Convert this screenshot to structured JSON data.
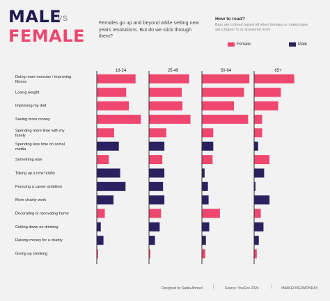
{
  "header": {
    "title_male": "MALE",
    "title_vs": "VS",
    "title_female": "FEMALE",
    "subtitle": "Females go up and beyond while setting new years resolutions. But do we stick through them?"
  },
  "how_to_read": {
    "title": "How to read?",
    "text": "Bars are colored based off when females or males have set a higher % or answered more"
  },
  "colors": {
    "female": "#ef476f",
    "male": "#2b2160",
    "divider": "#333333"
  },
  "footer": {
    "designed_by": "Designed by Sadia Ahmed",
    "source": "Source: YouGov 2024",
    "hashtag": "#MAKEOVERMONDAY"
  },
  "chart_data": {
    "type": "bar",
    "title": "",
    "legend": [
      "Female",
      "Male"
    ],
    "legend_position": "top-right",
    "groups": [
      "18-24",
      "25-49",
      "50-64",
      "65+"
    ],
    "categories": [
      "Doing more exercise / improving fitness",
      "Losing weight",
      "Improving my diet",
      "Saving more money",
      "Spending more time with my family",
      "Spending less time on social media",
      "Something else",
      "Taking up a new hobby",
      "Pursuing a career ambition",
      "More charity work",
      "Decorating or renovating home",
      "Cutting down on drinking",
      "Raising money for a charity",
      "Giving up smoking"
    ],
    "xlim": [
      0,
      76
    ],
    "values": {
      "18-24": [
        58,
        44,
        48,
        66,
        26,
        33,
        18,
        35,
        43,
        25,
        12,
        6,
        10,
        2
      ],
      "25-49": [
        60,
        49,
        50,
        62,
        26,
        23,
        20,
        23,
        21,
        23,
        18,
        16,
        9,
        2
      ],
      "50-64": [
        71,
        63,
        48,
        69,
        17,
        17,
        16,
        4,
        9,
        10,
        27,
        11,
        6,
        5
      ],
      "65+": [
        60,
        40,
        36,
        12,
        12,
        6,
        23,
        15,
        2,
        23,
        10,
        14,
        7,
        4
      ]
    },
    "color_by": {
      "18-24": [
        "F",
        "F",
        "F",
        "F",
        "F",
        "M",
        "F",
        "M",
        "M",
        "M",
        "F",
        "M",
        "M",
        "F"
      ],
      "25-49": [
        "F",
        "F",
        "F",
        "F",
        "F",
        "M",
        "F",
        "M",
        "M",
        "M",
        "F",
        "M",
        "M",
        "F"
      ],
      "50-64": [
        "F",
        "F",
        "F",
        "F",
        "F",
        "M",
        "F",
        "M",
        "M",
        "M",
        "F",
        "M",
        "M",
        "F"
      ],
      "65+": [
        "F",
        "F",
        "F",
        "F",
        "F",
        "M",
        "F",
        "M",
        "M",
        "M",
        "F",
        "M",
        "M",
        "F"
      ]
    }
  }
}
